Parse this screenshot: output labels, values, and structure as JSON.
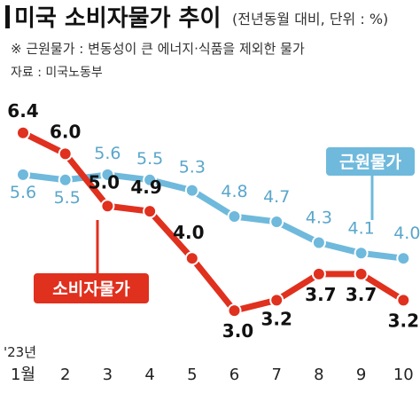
{
  "header": {
    "title": "미국 소비자물가 추이",
    "subtitle": "(전년동월 대비, 단위 : %)",
    "note": "※ 근원물가 : 변동성이 큰 에너지·식품을 제외한 물가",
    "source": "자료 : 미국노동부"
  },
  "chart_data": {
    "type": "line",
    "categories": [
      "1월",
      "2",
      "3",
      "4",
      "5",
      "6",
      "7",
      "8",
      "9",
      "10"
    ],
    "year_label": "'23년",
    "series": [
      {
        "name": "소비자물가",
        "color": "#E0301E",
        "values": [
          6.4,
          6.0,
          5.0,
          4.9,
          4.0,
          3.0,
          3.2,
          3.7,
          3.7,
          3.2
        ]
      },
      {
        "name": "근원물가",
        "color": "#6FB9DC",
        "values": [
          5.6,
          5.5,
          5.6,
          5.5,
          5.3,
          4.8,
          4.7,
          4.3,
          4.1,
          4.0
        ]
      }
    ],
    "ylim": [
      2.9,
      6.6
    ],
    "grid": false,
    "legend": "labels on lines"
  }
}
